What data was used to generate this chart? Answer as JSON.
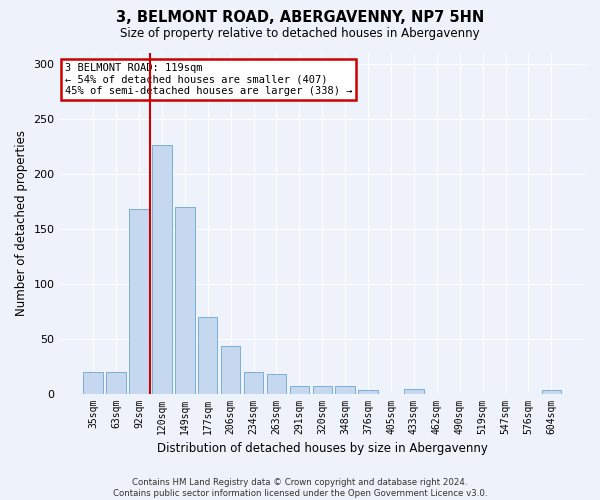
{
  "title1": "3, BELMONT ROAD, ABERGAVENNY, NP7 5HN",
  "title2": "Size of property relative to detached houses in Abergavenny",
  "xlabel": "Distribution of detached houses by size in Abergavenny",
  "ylabel": "Number of detached properties",
  "categories": [
    "35sqm",
    "63sqm",
    "92sqm",
    "120sqm",
    "149sqm",
    "177sqm",
    "206sqm",
    "234sqm",
    "263sqm",
    "291sqm",
    "320sqm",
    "348sqm",
    "376sqm",
    "405sqm",
    "433sqm",
    "462sqm",
    "490sqm",
    "519sqm",
    "547sqm",
    "576sqm",
    "604sqm"
  ],
  "values": [
    20,
    20,
    168,
    226,
    170,
    70,
    43,
    20,
    18,
    7,
    7,
    7,
    3,
    0,
    4,
    0,
    0,
    0,
    0,
    0,
    3
  ],
  "bar_color": "#c5d8f0",
  "bar_edgecolor": "#7aafd4",
  "background_color": "#eef2fa",
  "ylim": [
    0,
    310
  ],
  "yticks": [
    0,
    50,
    100,
    150,
    200,
    250,
    300
  ],
  "annotation_line1": "3 BELMONT ROAD: 119sqm",
  "annotation_line2": "← 54% of detached houses are smaller (407)",
  "annotation_line3": "45% of semi-detached houses are larger (338) →",
  "annotation_box_color": "#ffffff",
  "annotation_border_color": "#cc0000",
  "property_line_color": "#cc0000",
  "property_line_xindex": 2.5,
  "footer": "Contains HM Land Registry data © Crown copyright and database right 2024.\nContains public sector information licensed under the Open Government Licence v3.0.",
  "figsize": [
    6.0,
    5.0
  ],
  "dpi": 100
}
